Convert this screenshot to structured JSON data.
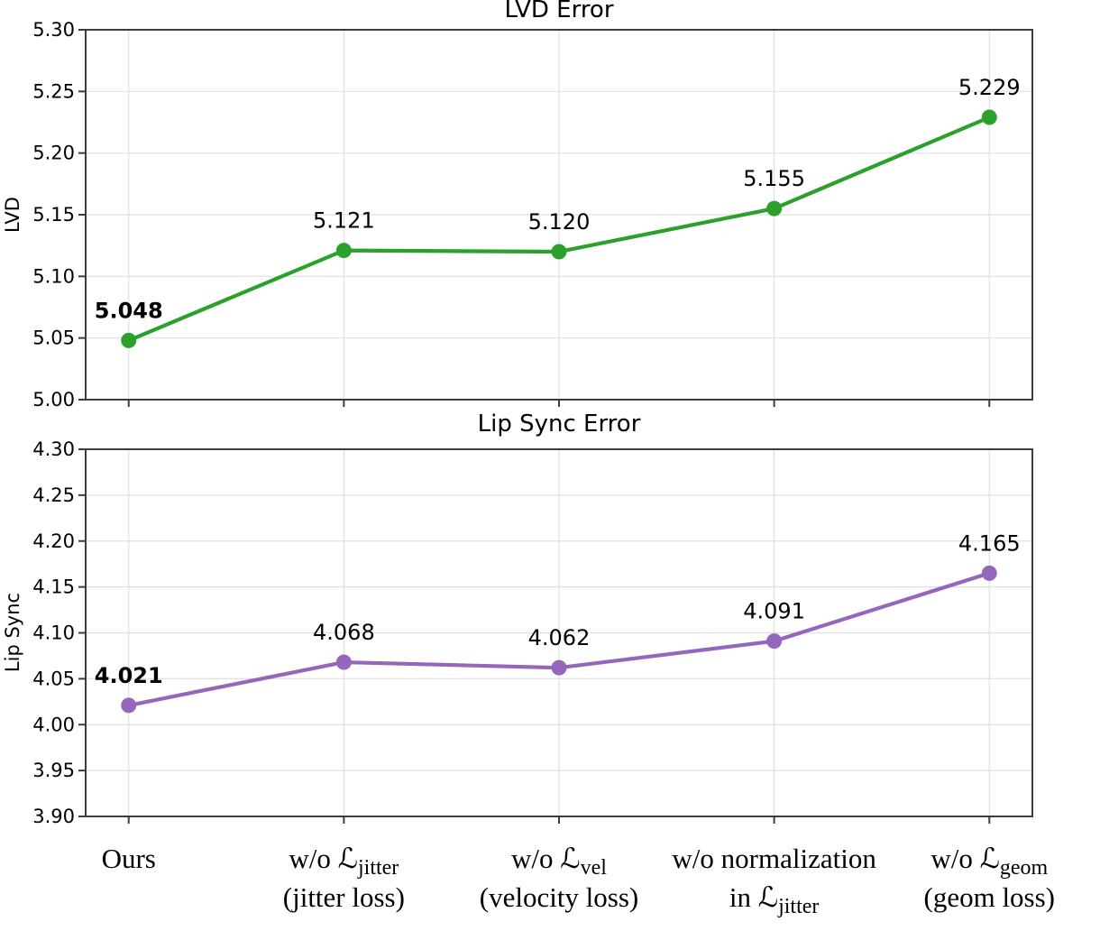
{
  "page": {
    "background": "#ffffff"
  },
  "style": {
    "grid_color": "#e0e0e0",
    "spine_color": "#3c3c3c",
    "text_color": "#000000",
    "green_accent": "#2ca02c",
    "purple_accent": "#9467bd"
  },
  "chart_data": [
    {
      "type": "line",
      "title": "LVD Error",
      "ylabel": "LVD",
      "ylim": [
        5.0,
        5.3
      ],
      "yticks": [
        "5.00",
        "5.05",
        "5.10",
        "5.15",
        "5.20",
        "5.25",
        "5.30"
      ],
      "grid": true,
      "legend": "none",
      "series": [
        {
          "name": "LVD",
          "color": "#2ca02c",
          "values": [
            5.048,
            5.121,
            5.12,
            5.155,
            5.229
          ]
        }
      ],
      "point_labels": [
        "5.048",
        "5.121",
        "5.120",
        "5.155",
        "5.229"
      ],
      "emphasis_index": 0
    },
    {
      "type": "line",
      "title": "Lip Sync Error",
      "ylabel": "Lip Sync",
      "ylim": [
        3.9,
        4.3
      ],
      "yticks": [
        "3.90",
        "3.95",
        "4.00",
        "4.05",
        "4.10",
        "4.15",
        "4.20",
        "4.25",
        "4.30"
      ],
      "grid": true,
      "legend": "none",
      "series": [
        {
          "name": "Lip Sync",
          "color": "#9467bd",
          "values": [
            4.021,
            4.068,
            4.062,
            4.091,
            4.165
          ]
        }
      ],
      "point_labels": [
        "4.021",
        "4.068",
        "4.062",
        "4.091",
        "4.165"
      ],
      "emphasis_index": 0
    }
  ],
  "x_axis": {
    "categories": [
      {
        "lines": [
          [
            {
              "t": "Ours"
            }
          ]
        ]
      },
      {
        "lines": [
          [
            {
              "t": "w/o ℒ"
            },
            {
              "t": "jitter",
              "sub": true
            }
          ],
          [
            {
              "t": "(jitter loss)"
            }
          ]
        ]
      },
      {
        "lines": [
          [
            {
              "t": "w/o ℒ"
            },
            {
              "t": "vel",
              "sub": true
            }
          ],
          [
            {
              "t": "(velocity loss)"
            }
          ]
        ]
      },
      {
        "lines": [
          [
            {
              "t": "w/o normalization"
            }
          ],
          [
            {
              "t": "in ℒ"
            },
            {
              "t": "jitter",
              "sub": true
            }
          ]
        ]
      },
      {
        "lines": [
          [
            {
              "t": "w/o ℒ"
            },
            {
              "t": "geom",
              "sub": true
            }
          ],
          [
            {
              "t": "(geom loss)"
            }
          ]
        ]
      }
    ]
  }
}
